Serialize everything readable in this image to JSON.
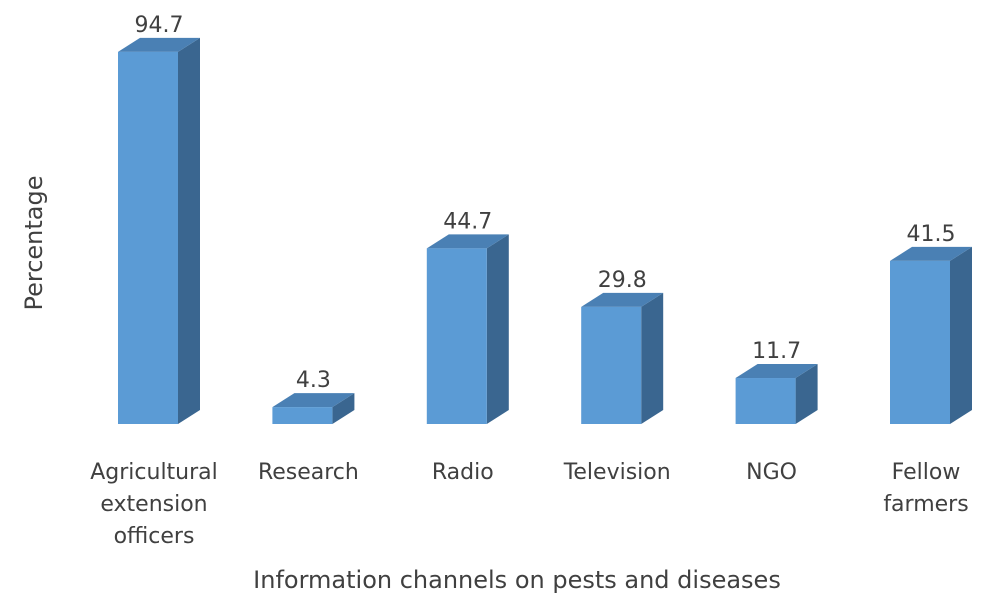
{
  "chart_data": {
    "type": "bar",
    "style": "3d-column",
    "title": "",
    "xlabel": "Information channels on pests and diseases",
    "ylabel": "Percentage",
    "ylim": [
      0,
      100
    ],
    "grid": false,
    "legend": "none",
    "categories": [
      [
        "Agricultural",
        "extension",
        "officers"
      ],
      [
        "Research"
      ],
      [
        "Radio"
      ],
      [
        "Television"
      ],
      [
        "NGO"
      ],
      [
        "Fellow",
        "farmers"
      ]
    ],
    "values": [
      94.7,
      4.3,
      44.7,
      29.8,
      11.7,
      41.5
    ],
    "value_labels": [
      "94.7",
      "4.3",
      "44.7",
      "29.8",
      "11.7",
      "41.5"
    ],
    "colors": {
      "front": "#5b9bd5",
      "side": "#3a6690",
      "top": "#4a80b4",
      "text": "#404040"
    }
  }
}
